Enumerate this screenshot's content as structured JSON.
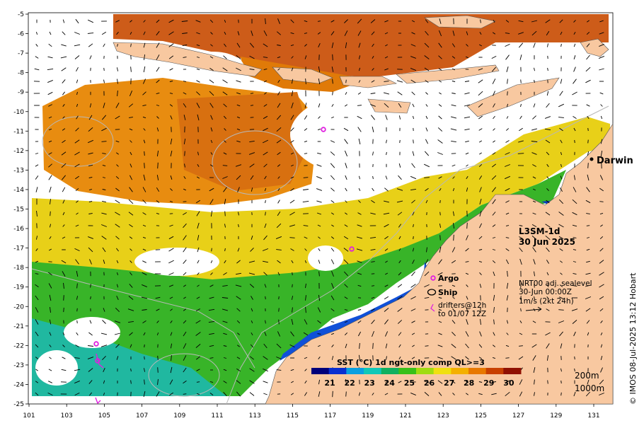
{
  "title": "L3SM-1d",
  "date": "30 Jun 2025",
  "place_label": "Darwin",
  "legend": {
    "argo": "Argo",
    "ship": "Ship",
    "drifters_line1": "drifters@12h",
    "drifters_line2": "to 01/07 12Z"
  },
  "current_note": {
    "line1": "NRT00 adj. sealevel",
    "line2": "30-Jun 00:00Z",
    "line3": "1m/s (2kt 24h)"
  },
  "depth_contours": [
    "200m",
    "1000m"
  ],
  "colorbar": {
    "title": "SST (°C) 1d ngt-only comp QL>=3",
    "ticks": [
      "21",
      "22",
      "23",
      "24",
      "25",
      "26",
      "27",
      "28",
      "29",
      "30"
    ],
    "colors": [
      "#00007a",
      "#0a2fd0",
      "#0aa0e0",
      "#10c8b8",
      "#10b060",
      "#38c018",
      "#a0dc10",
      "#f0e010",
      "#f4b000",
      "#e87800",
      "#c84000",
      "#901000"
    ]
  },
  "lon_labels": [
    "101",
    "103",
    "105",
    "107",
    "109",
    "111",
    "113",
    "115",
    "117",
    "119",
    "121",
    "123",
    "125",
    "127",
    "129",
    "131"
  ],
  "lat_labels": [
    "-5",
    "-6",
    "-7",
    "-8",
    "-9",
    "-10",
    "-11",
    "-12",
    "-13",
    "-14",
    "-15",
    "-16",
    "-17",
    "-18",
    "-19",
    "-20",
    "-21",
    "-22",
    "-23",
    "-24",
    "-25"
  ],
  "credit": "© IMOS 08-Jul-2025 13:12 Hobart",
  "colors": {
    "land": "#f8c8a0",
    "argo": "#e020e0",
    "contour": "#b8b8b8"
  }
}
